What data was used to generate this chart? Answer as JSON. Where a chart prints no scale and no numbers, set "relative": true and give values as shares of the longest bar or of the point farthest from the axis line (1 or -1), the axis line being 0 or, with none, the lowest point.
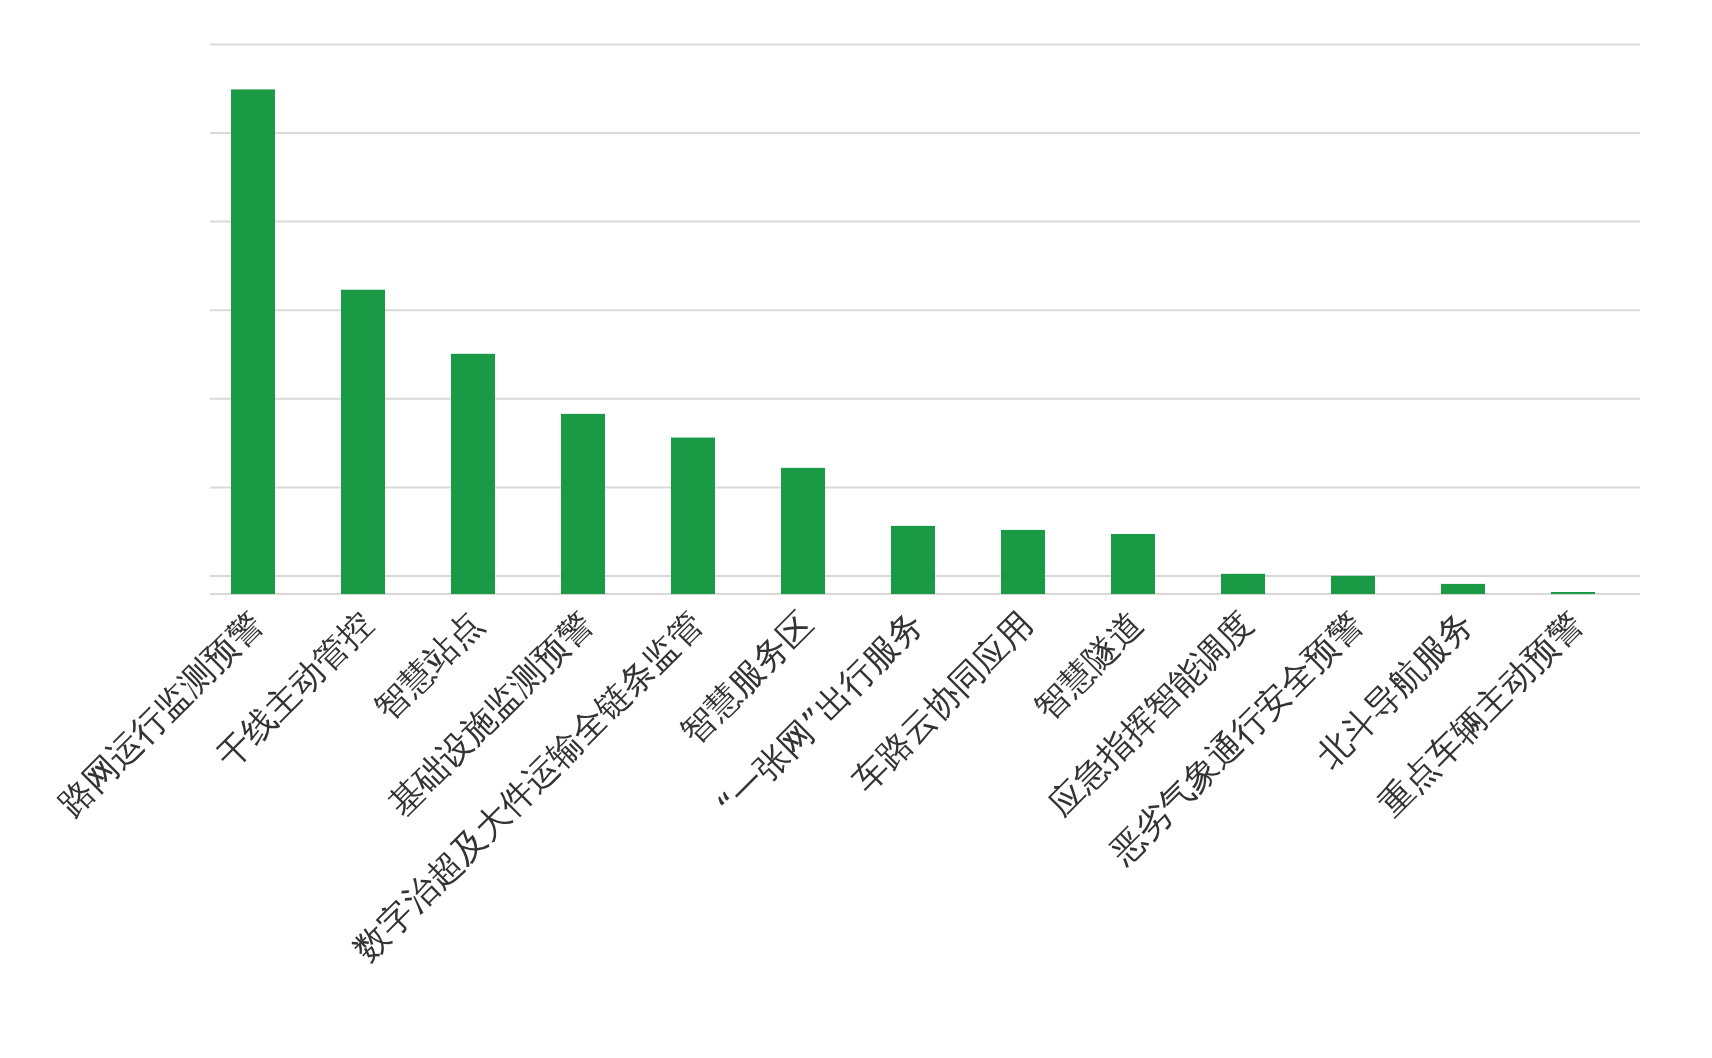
{
  "chart_data": {
    "type": "bar",
    "relative": true,
    "grid": "y",
    "color": "#1a9a45",
    "categories": [
      "路网运行监测预警",
      "干线主动管控",
      "智慧站点",
      "基础设施监测预警",
      "数字治超及大件运输全链条监管",
      "智慧服务区",
      "“一张网”出行服务",
      "车路云协同应用",
      "智慧隧道",
      "应急指挥智能调度",
      "恶劣气象通行安全预警",
      "北斗导航服务",
      "重点车辆主动预警"
    ],
    "values": [
      1,
      0.603,
      0.476,
      0.357,
      0.31,
      0.25,
      0.135,
      0.127,
      0.119,
      0.04,
      0.036,
      0.02,
      0.004
    ]
  }
}
